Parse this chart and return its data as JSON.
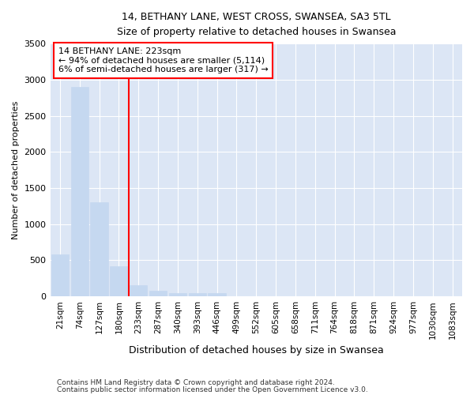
{
  "title_line1": "14, BETHANY LANE, WEST CROSS, SWANSEA, SA3 5TL",
  "title_line2": "Size of property relative to detached houses in Swansea",
  "xlabel": "Distribution of detached houses by size in Swansea",
  "ylabel": "Number of detached properties",
  "categories": [
    "21sqm",
    "74sqm",
    "127sqm",
    "180sqm",
    "233sqm",
    "287sqm",
    "340sqm",
    "393sqm",
    "446sqm",
    "499sqm",
    "552sqm",
    "605sqm",
    "658sqm",
    "711sqm",
    "764sqm",
    "818sqm",
    "871sqm",
    "924sqm",
    "977sqm",
    "1030sqm",
    "1083sqm"
  ],
  "values": [
    580,
    2900,
    1300,
    420,
    160,
    75,
    50,
    50,
    45,
    0,
    0,
    0,
    0,
    0,
    0,
    0,
    0,
    0,
    0,
    0,
    0
  ],
  "bar_color": "#c5d8f0",
  "bar_edgecolor": "#c5d8f0",
  "annotation_text_line1": "14 BETHANY LANE: 223sqm",
  "annotation_text_line2": "← 94% of detached houses are smaller (5,114)",
  "annotation_text_line3": "6% of semi-detached houses are larger (317) →",
  "annotation_box_facecolor": "white",
  "annotation_box_edgecolor": "red",
  "vline_color": "red",
  "vline_x": 3.5,
  "ylim": [
    0,
    3500
  ],
  "yticks": [
    0,
    500,
    1000,
    1500,
    2000,
    2500,
    3000,
    3500
  ],
  "background_color": "#dce6f5",
  "grid_color": "white",
  "footnote_line1": "Contains HM Land Registry data © Crown copyright and database right 2024.",
  "footnote_line2": "Contains public sector information licensed under the Open Government Licence v3.0."
}
